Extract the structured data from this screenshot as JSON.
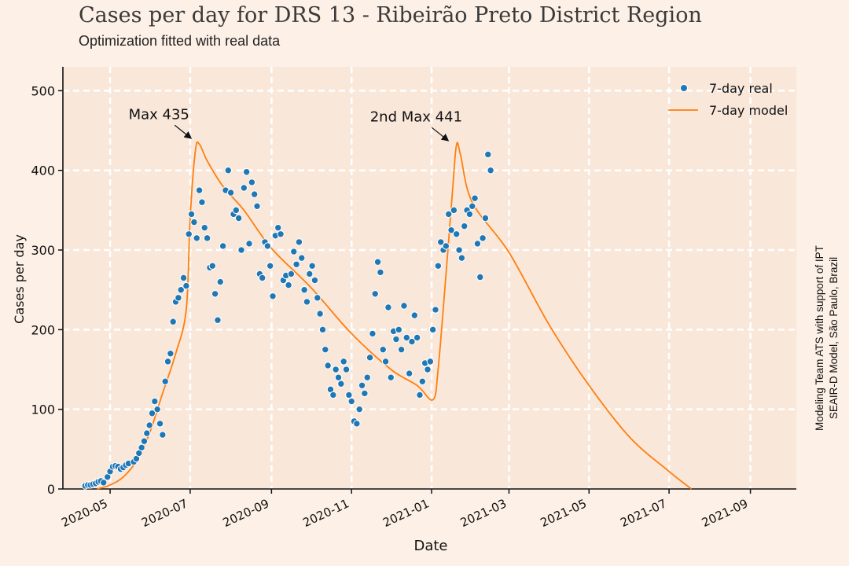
{
  "title": "Cases per day for DRS 13 - Ribeirão Preto District Region",
  "subtitle": "Optimization fitted with real data",
  "credit_lines": [
    "Modeling Team ATS with support of IPT",
    "SEAIR-D Model, São Paulo, Brazil"
  ],
  "colors": {
    "background": "#fdf0e6",
    "plot_area": "#f9e7da",
    "real": "#1f77b4",
    "model": "#ff7f0e",
    "grid": "#ffffff"
  },
  "chart_data": {
    "type": "scatter",
    "xlabel": "Date",
    "ylabel": "Cases per day",
    "xlim": [
      "2020-03-26",
      "2021-10-06"
    ],
    "ylim": [
      0,
      530
    ],
    "x_ticks": [
      "2020-05-01",
      "2020-07-01",
      "2020-09-01",
      "2020-11-01",
      "2021-01-01",
      "2021-03-01",
      "2021-05-01",
      "2021-07-01",
      "2021-09-01"
    ],
    "x_tick_labels": [
      "2020-05",
      "2020-07",
      "2020-09",
      "2020-11",
      "2021-01",
      "2021-03",
      "2021-05",
      "2021-07",
      "2021-09"
    ],
    "y_ticks": [
      0,
      100,
      200,
      300,
      400,
      500
    ],
    "y_tick_labels": [
      "0",
      "100",
      "200",
      "300",
      "400",
      "500"
    ],
    "grid": true,
    "legend_position": "top-right",
    "legend": [
      {
        "label": "7-day real",
        "marker": "dot"
      },
      {
        "label": "7-day model",
        "marker": "line"
      }
    ],
    "annotations": [
      {
        "text": "Max 435",
        "x": "2020-07-06",
        "y": 435
      },
      {
        "text": "2nd Max 441",
        "x": "2021-01-18",
        "y": 432
      }
    ],
    "series": [
      {
        "name": "7-day real",
        "type": "scatter",
        "points": [
          [
            "2020-04-12",
            4
          ],
          [
            "2020-04-14",
            5
          ],
          [
            "2020-04-16",
            5
          ],
          [
            "2020-04-18",
            6
          ],
          [
            "2020-04-20",
            7
          ],
          [
            "2020-04-22",
            9
          ],
          [
            "2020-04-24",
            10
          ],
          [
            "2020-04-26",
            8
          ],
          [
            "2020-04-29",
            15
          ],
          [
            "2020-05-01",
            22
          ],
          [
            "2020-05-03",
            28
          ],
          [
            "2020-05-05",
            29
          ],
          [
            "2020-05-07",
            28
          ],
          [
            "2020-05-09",
            25
          ],
          [
            "2020-05-11",
            27
          ],
          [
            "2020-05-13",
            30
          ],
          [
            "2020-05-15",
            32
          ],
          [
            "2020-05-19",
            34
          ],
          [
            "2020-05-21",
            38
          ],
          [
            "2020-05-23",
            45
          ],
          [
            "2020-05-25",
            52
          ],
          [
            "2020-05-27",
            60
          ],
          [
            "2020-05-29",
            70
          ],
          [
            "2020-05-31",
            80
          ],
          [
            "2020-06-02",
            95
          ],
          [
            "2020-06-04",
            110
          ],
          [
            "2020-06-06",
            100
          ],
          [
            "2020-06-08",
            82
          ],
          [
            "2020-06-10",
            68
          ],
          [
            "2020-06-12",
            135
          ],
          [
            "2020-06-14",
            160
          ],
          [
            "2020-06-16",
            170
          ],
          [
            "2020-06-18",
            210
          ],
          [
            "2020-06-20",
            235
          ],
          [
            "2020-06-22",
            240
          ],
          [
            "2020-06-24",
            250
          ],
          [
            "2020-06-26",
            265
          ],
          [
            "2020-06-28",
            255
          ],
          [
            "2020-06-30",
            320
          ],
          [
            "2020-07-02",
            345
          ],
          [
            "2020-07-04",
            335
          ],
          [
            "2020-07-06",
            315
          ],
          [
            "2020-07-08",
            375
          ],
          [
            "2020-07-10",
            360
          ],
          [
            "2020-07-12",
            328
          ],
          [
            "2020-07-14",
            315
          ],
          [
            "2020-07-16",
            278
          ],
          [
            "2020-07-18",
            280
          ],
          [
            "2020-07-20",
            245
          ],
          [
            "2020-07-22",
            212
          ],
          [
            "2020-07-24",
            260
          ],
          [
            "2020-07-26",
            305
          ],
          [
            "2020-07-28",
            375
          ],
          [
            "2020-07-30",
            400
          ],
          [
            "2020-08-01",
            372
          ],
          [
            "2020-08-03",
            345
          ],
          [
            "2020-08-05",
            350
          ],
          [
            "2020-08-07",
            340
          ],
          [
            "2020-08-09",
            300
          ],
          [
            "2020-08-11",
            378
          ],
          [
            "2020-08-13",
            398
          ],
          [
            "2020-08-15",
            308
          ],
          [
            "2020-08-17",
            385
          ],
          [
            "2020-08-19",
            370
          ],
          [
            "2020-08-21",
            355
          ],
          [
            "2020-08-23",
            270
          ],
          [
            "2020-08-25",
            265
          ],
          [
            "2020-08-27",
            310
          ],
          [
            "2020-08-29",
            305
          ],
          [
            "2020-08-31",
            280
          ],
          [
            "2020-09-02",
            242
          ],
          [
            "2020-09-04",
            318
          ],
          [
            "2020-09-06",
            328
          ],
          [
            "2020-09-08",
            320
          ],
          [
            "2020-09-10",
            262
          ],
          [
            "2020-09-12",
            268
          ],
          [
            "2020-09-14",
            256
          ],
          [
            "2020-09-16",
            270
          ],
          [
            "2020-09-18",
            298
          ],
          [
            "2020-09-20",
            282
          ],
          [
            "2020-09-22",
            310
          ],
          [
            "2020-09-24",
            290
          ],
          [
            "2020-09-26",
            250
          ],
          [
            "2020-09-28",
            235
          ],
          [
            "2020-09-30",
            270
          ],
          [
            "2020-10-02",
            280
          ],
          [
            "2020-10-04",
            262
          ],
          [
            "2020-10-06",
            240
          ],
          [
            "2020-10-08",
            220
          ],
          [
            "2020-10-10",
            200
          ],
          [
            "2020-10-12",
            175
          ],
          [
            "2020-10-14",
            155
          ],
          [
            "2020-10-16",
            125
          ],
          [
            "2020-10-18",
            118
          ],
          [
            "2020-10-20",
            150
          ],
          [
            "2020-10-22",
            140
          ],
          [
            "2020-10-24",
            132
          ],
          [
            "2020-10-26",
            160
          ],
          [
            "2020-10-28",
            150
          ],
          [
            "2020-10-30",
            118
          ],
          [
            "2020-11-01",
            110
          ],
          [
            "2020-11-03",
            85
          ],
          [
            "2020-11-05",
            82
          ],
          [
            "2020-11-07",
            100
          ],
          [
            "2020-11-09",
            130
          ],
          [
            "2020-11-11",
            120
          ],
          [
            "2020-11-13",
            140
          ],
          [
            "2020-11-15",
            165
          ],
          [
            "2020-11-17",
            195
          ],
          [
            "2020-11-19",
            245
          ],
          [
            "2020-11-21",
            285
          ],
          [
            "2020-11-23",
            272
          ],
          [
            "2020-11-25",
            175
          ],
          [
            "2020-11-27",
            160
          ],
          [
            "2020-11-29",
            228
          ],
          [
            "2020-12-01",
            140
          ],
          [
            "2020-12-03",
            198
          ],
          [
            "2020-12-05",
            188
          ],
          [
            "2020-12-07",
            200
          ],
          [
            "2020-12-09",
            175
          ],
          [
            "2020-12-11",
            230
          ],
          [
            "2020-12-13",
            190
          ],
          [
            "2020-12-15",
            145
          ],
          [
            "2020-12-17",
            185
          ],
          [
            "2020-12-19",
            218
          ],
          [
            "2020-12-21",
            190
          ],
          [
            "2020-12-23",
            118
          ],
          [
            "2020-12-25",
            135
          ],
          [
            "2020-12-27",
            158
          ],
          [
            "2020-12-29",
            150
          ],
          [
            "2020-12-31",
            160
          ],
          [
            "2021-01-02",
            200
          ],
          [
            "2021-01-04",
            225
          ],
          [
            "2021-01-06",
            280
          ],
          [
            "2021-01-08",
            310
          ],
          [
            "2021-01-10",
            300
          ],
          [
            "2021-01-12",
            305
          ],
          [
            "2021-01-14",
            345
          ],
          [
            "2021-01-16",
            325
          ],
          [
            "2021-01-18",
            350
          ],
          [
            "2021-01-20",
            320
          ],
          [
            "2021-01-22",
            300
          ],
          [
            "2021-01-24",
            290
          ],
          [
            "2021-01-26",
            330
          ],
          [
            "2021-01-28",
            350
          ],
          [
            "2021-01-30",
            345
          ],
          [
            "2021-02-01",
            355
          ],
          [
            "2021-02-03",
            365
          ],
          [
            "2021-02-05",
            308
          ],
          [
            "2021-02-07",
            266
          ],
          [
            "2021-02-09",
            315
          ],
          [
            "2021-02-11",
            340
          ],
          [
            "2021-02-13",
            420
          ],
          [
            "2021-02-15",
            400
          ]
        ]
      },
      {
        "name": "7-day model",
        "type": "line",
        "points": [
          [
            "2020-04-21",
            0
          ],
          [
            "2020-05-01",
            5
          ],
          [
            "2020-05-11",
            15
          ],
          [
            "2020-05-21",
            35
          ],
          [
            "2020-05-31",
            70
          ],
          [
            "2020-06-10",
            120
          ],
          [
            "2020-06-20",
            170
          ],
          [
            "2020-06-28",
            225
          ],
          [
            "2020-07-01",
            340
          ],
          [
            "2020-07-05",
            425
          ],
          [
            "2020-07-08",
            433
          ],
          [
            "2020-07-14",
            412
          ],
          [
            "2020-07-26",
            380
          ],
          [
            "2020-08-11",
            350
          ],
          [
            "2020-09-01",
            302
          ],
          [
            "2020-10-01",
            253
          ],
          [
            "2020-11-01",
            195
          ],
          [
            "2020-12-01",
            150
          ],
          [
            "2020-12-21",
            130
          ],
          [
            "2021-01-02",
            112
          ],
          [
            "2021-01-06",
            150
          ],
          [
            "2021-01-12",
            270
          ],
          [
            "2021-01-17",
            375
          ],
          [
            "2021-01-20",
            432
          ],
          [
            "2021-01-23",
            420
          ],
          [
            "2021-02-01",
            360
          ],
          [
            "2021-03-01",
            297
          ],
          [
            "2021-04-01",
            205
          ],
          [
            "2021-05-01",
            130
          ],
          [
            "2021-06-01",
            65
          ],
          [
            "2021-07-01",
            22
          ],
          [
            "2021-07-18",
            0
          ]
        ]
      }
    ]
  }
}
